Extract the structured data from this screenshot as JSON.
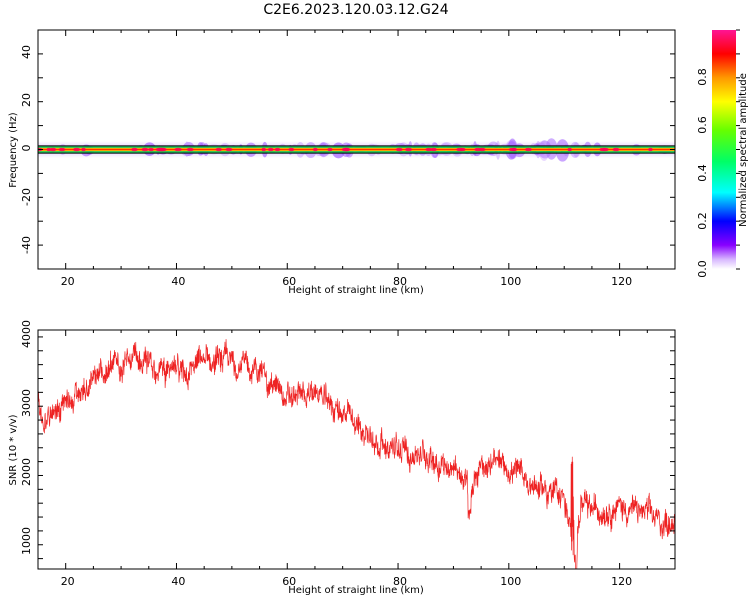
{
  "title": "C2E6.2023.120.03.12.G24",
  "colors": {
    "snr_line": "#ee2222",
    "centre_line": "#ff3300",
    "band_edge": "#000000",
    "band_glow": "#00cc44"
  },
  "chart_data": [
    {
      "type": "heatmap",
      "xlabel": "Height of straight line (km)",
      "ylabel": "Frequency (Hz)",
      "xlim": [
        15,
        130
      ],
      "ylim": [
        -50,
        50
      ],
      "xticks": [
        "20",
        "40",
        "60",
        "80",
        "100",
        "120"
      ],
      "yticks": [
        "-40",
        "-20",
        "0",
        "20",
        "40"
      ],
      "band_half_width_hz": 1.5,
      "colorbar": {
        "label": "Normalized spectral amplitude",
        "range": [
          0,
          1
        ],
        "ticks": [
          "0.0",
          "0.2",
          "0.4",
          "0.6",
          "0.8"
        ],
        "colormap": "hsv-rainbow"
      }
    },
    {
      "type": "line",
      "xlabel": "Height of straight line (km)",
      "ylabel": "SNR (10 * v/v)",
      "xlim": [
        15,
        130
      ],
      "ylim": [
        650,
        4100
      ],
      "xticks": [
        "20",
        "40",
        "60",
        "80",
        "100",
        "120"
      ],
      "yticks": [
        "1000",
        "2000",
        "3000",
        "4000"
      ],
      "noise_amplitude": 170,
      "trend": {
        "x": [
          15,
          16,
          17,
          20,
          25,
          30,
          35,
          40,
          45,
          50,
          55,
          60,
          65,
          70,
          75,
          80,
          85,
          90,
          92,
          93,
          95,
          100,
          105,
          110,
          111,
          112,
          113,
          115,
          120,
          125,
          128,
          130
        ],
        "y": [
          3100,
          2600,
          2950,
          3050,
          3350,
          3650,
          3600,
          3450,
          3650,
          3650,
          3500,
          3100,
          3200,
          2900,
          2550,
          2350,
          2300,
          2100,
          1950,
          1650,
          2200,
          2100,
          1850,
          1700,
          1250,
          950,
          1550,
          1500,
          1550,
          1450,
          1300,
          1400
        ]
      }
    }
  ]
}
